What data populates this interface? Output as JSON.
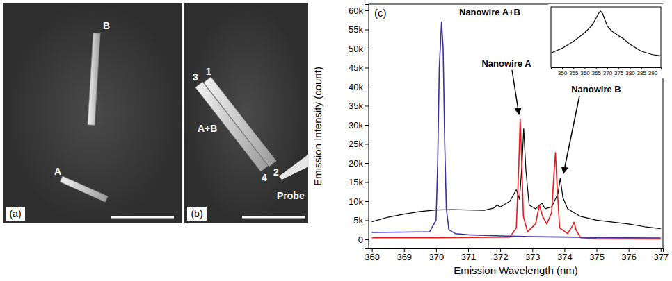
{
  "images": [
    {
      "label": "(a)",
      "labels": [
        "A",
        "B"
      ]
    },
    {
      "label": "(b)",
      "labels": [
        "1",
        "2",
        "3",
        "4",
        "A+B",
        "Probe"
      ]
    }
  ],
  "chart_data": [
    {
      "type": "line",
      "panel": "(c)",
      "x_label": "Emission Wavelength (nm)",
      "y_label": "Emission Intensity (count)",
      "xlim": [
        367.9,
        377.07
      ],
      "xticks": [
        368,
        369,
        370,
        371,
        372,
        373,
        374,
        375,
        376,
        377
      ],
      "ylim": [
        -2378,
        61646
      ],
      "yticks": [
        0,
        {
          "value": 5000,
          "label": "5k"
        },
        {
          "value": 10000,
          "label": "10k"
        },
        {
          "value": 15000,
          "label": "15k"
        },
        {
          "value": 20000,
          "label": "20k"
        },
        {
          "value": 25000,
          "label": "25k"
        },
        {
          "value": 30000,
          "label": "30k"
        },
        {
          "value": 35000,
          "label": "35k"
        },
        {
          "value": 40000,
          "label": "40k"
        },
        {
          "value": 45000,
          "label": "45k"
        },
        {
          "value": 50000,
          "label": "50k"
        },
        {
          "value": 55000,
          "label": "55k"
        },
        {
          "value": 60000,
          "label": "60k"
        }
      ],
      "series": [
        {
          "name": "Nanowire A+B",
          "color": "#3a2fa0",
          "x": [
            368,
            369,
            369.8,
            370.0,
            370.05,
            370.1,
            370.17,
            370.22,
            370.27,
            370.32,
            370.4,
            370.6,
            371,
            372,
            373,
            374,
            375,
            376,
            377
          ],
          "values": [
            1800,
            1900,
            2000,
            5000,
            20000,
            45000,
            57000,
            50000,
            25000,
            8000,
            2500,
            1500,
            1200,
            900,
            700,
            600,
            500,
            400,
            350
          ]
        },
        {
          "name": "Nanowire A",
          "color": "#e8191a",
          "x": [
            368,
            370,
            372.3,
            372.5,
            372.58,
            372.62,
            372.67,
            372.72,
            372.85,
            373.1,
            373.22,
            373.32,
            373.45,
            373.6,
            373.68,
            373.72,
            373.77,
            373.85,
            374.1,
            374.25,
            374.3,
            374.36,
            374.5,
            375,
            377
          ],
          "values": [
            400,
            400,
            600,
            3000,
            20000,
            31500,
            20000,
            6000,
            2000,
            4000,
            9000,
            6000,
            4000,
            7000,
            18000,
            22700,
            14000,
            3000,
            1500,
            3500,
            4500,
            2500,
            400,
            200,
            100
          ]
        },
        {
          "name": "Nanowire B",
          "color": "#000000",
          "x": [
            368,
            368.5,
            369,
            369.5,
            370,
            370.5,
            371,
            371.5,
            371.8,
            371.9,
            372,
            372.3,
            372.5,
            372.6,
            372.68,
            372.73,
            372.8,
            372.9,
            373.1,
            373.3,
            373.4,
            373.6,
            373.8,
            373.87,
            373.95,
            374.1,
            374.2,
            374.5,
            375,
            375.5,
            376,
            376.5,
            377
          ],
          "values": [
            4600,
            5800,
            6600,
            7300,
            7700,
            7800,
            7700,
            7600,
            8200,
            9000,
            8500,
            10000,
            13000,
            10500,
            20000,
            29000,
            18000,
            9000,
            8000,
            9500,
            8000,
            8500,
            12000,
            16000,
            11000,
            8000,
            7500,
            6000,
            5000,
            4500,
            4000,
            3300,
            2800
          ]
        }
      ]
    },
    {
      "type": "line",
      "tick_labels": "x",
      "xlim": [
        345.08,
        393.7
      ],
      "xticks": [
        350,
        355,
        360,
        365,
        370,
        375,
        380,
        385,
        390
      ],
      "ylim": [
        0,
        1.05
      ],
      "series": [
        {
          "color": "#000000",
          "x": [
            345.2,
            350,
            355,
            360,
            363,
            365,
            366,
            367,
            368,
            369,
            370,
            372,
            375,
            377,
            380,
            385,
            390,
            393.5
          ],
          "values": [
            0.25,
            0.33,
            0.45,
            0.6,
            0.72,
            0.85,
            0.93,
            0.98,
            0.93,
            0.82,
            0.72,
            0.63,
            0.55,
            0.5,
            0.4,
            0.28,
            0.22,
            0.2
          ]
        }
      ]
    }
  ]
}
